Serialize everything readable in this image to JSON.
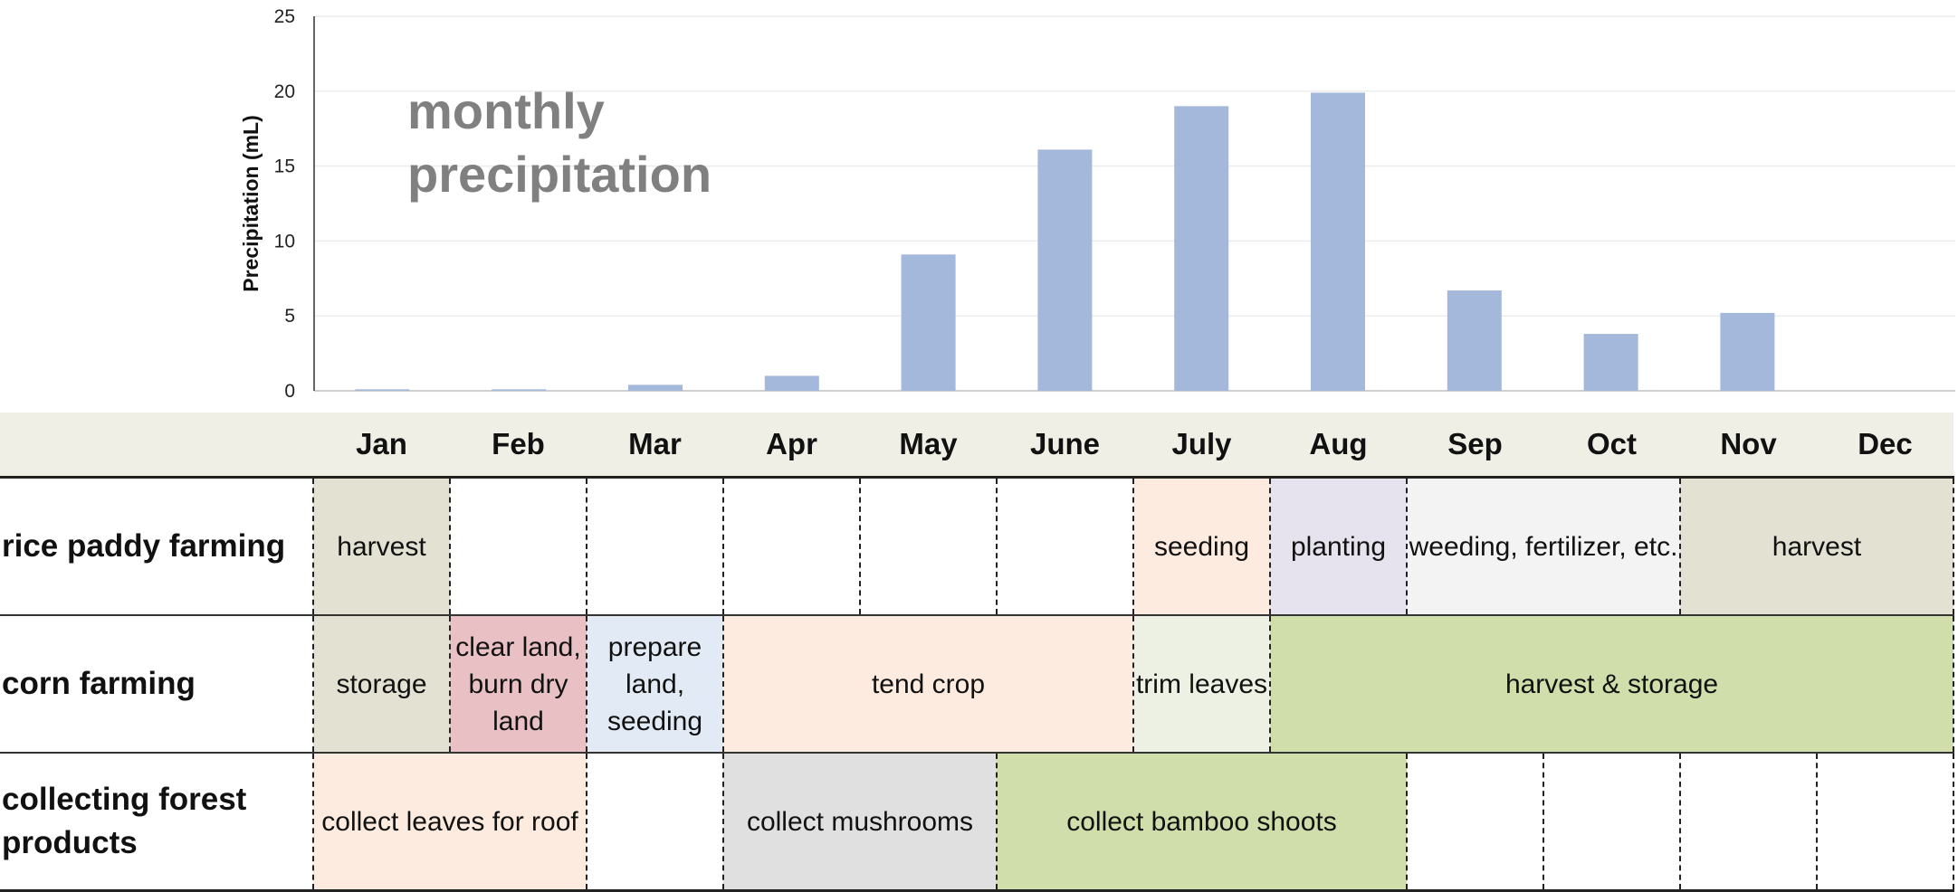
{
  "chart_data": {
    "type": "bar",
    "title": "monthly precipitation",
    "title_lines": [
      "monthly",
      "precipitation"
    ],
    "ylabel": "Precipitation (mL)",
    "ylim": [
      0,
      25
    ],
    "yticks": [
      "0",
      "5",
      "10",
      "15",
      "20",
      "25"
    ],
    "categories": [
      "Jan",
      "Feb",
      "Mar",
      "Apr",
      "May",
      "June",
      "July",
      "Aug",
      "Sep",
      "Oct",
      "Nov",
      "Dec"
    ],
    "values": [
      0.1,
      0.1,
      0.4,
      1.0,
      9.1,
      16.1,
      19.0,
      19.9,
      6.7,
      3.8,
      5.2,
      0
    ],
    "grid": true,
    "bar_color": "#a3b8da"
  },
  "calendar": {
    "months": [
      "Jan",
      "Feb",
      "Mar",
      "Apr",
      "May",
      "June",
      "July",
      "Aug",
      "Sep",
      "Oct",
      "Nov",
      "Dec"
    ],
    "rows": [
      {
        "label": "rice paddy farming",
        "cells": [
          {
            "text": "harvest",
            "span": 1,
            "color": "beige"
          },
          {
            "text": "",
            "span": 1,
            "color": ""
          },
          {
            "text": "",
            "span": 1,
            "color": ""
          },
          {
            "text": "",
            "span": 1,
            "color": ""
          },
          {
            "text": "",
            "span": 1,
            "color": ""
          },
          {
            "text": "",
            "span": 1,
            "color": ""
          },
          {
            "text": "seeding",
            "span": 1,
            "color": "peach"
          },
          {
            "text": "planting",
            "span": 1,
            "color": "lav"
          },
          {
            "text": "weeding, fertilizer, etc.",
            "span": 2,
            "color": "ltgray"
          },
          {
            "text": "harvest",
            "span": 2,
            "color": "beige"
          }
        ]
      },
      {
        "label": "corn farming",
        "cells": [
          {
            "text": "storage",
            "span": 1,
            "color": "beige"
          },
          {
            "text": "clear land, burn dry land",
            "span": 1,
            "color": "pink"
          },
          {
            "text": "prepare land, seeding",
            "span": 1,
            "color": "blue"
          },
          {
            "text": "tend crop",
            "span": 3,
            "color": "peach"
          },
          {
            "text": "trim leaves",
            "span": 1,
            "color": "palegreen"
          },
          {
            "text": "harvest & storage",
            "span": 5,
            "color": "green"
          }
        ]
      },
      {
        "label": "collecting forest products",
        "cells": [
          {
            "text": "collect leaves for roof",
            "span": 2,
            "color": "peach"
          },
          {
            "text": "",
            "span": 1,
            "color": ""
          },
          {
            "text": "collect mushrooms",
            "span": 2,
            "color": "gray"
          },
          {
            "text": "collect bamboo shoots",
            "span": 3,
            "color": "green"
          },
          {
            "text": "",
            "span": 1,
            "color": ""
          },
          {
            "text": "",
            "span": 1,
            "color": ""
          },
          {
            "text": "",
            "span": 1,
            "color": ""
          },
          {
            "text": "",
            "span": 1,
            "color": ""
          }
        ]
      }
    ]
  }
}
